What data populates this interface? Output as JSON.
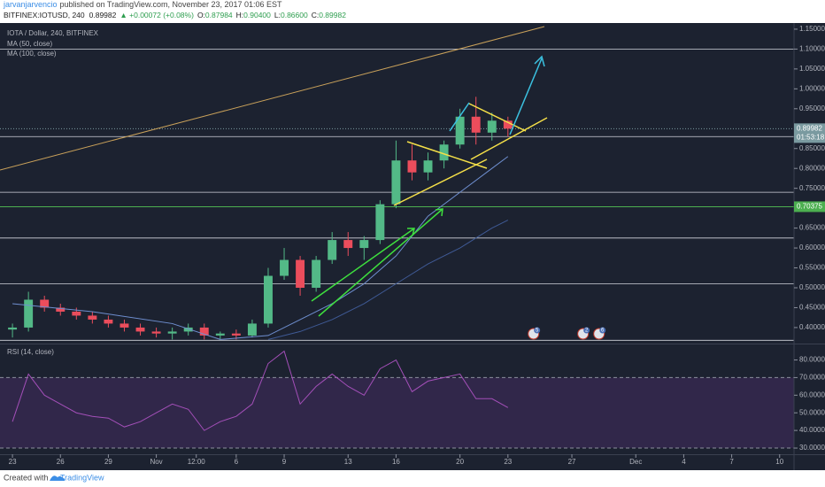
{
  "header": {
    "author": "jarvanjarvencio",
    "published": "published on TradingView.com, November 23, 2017 01:06 EST",
    "symbol": "BITFINEX:IOTUSD, 240",
    "price": "0.89982",
    "change": "▲ +0.00072 (+0.08%)",
    "ohlc": [
      {
        "key": "O:",
        "value": "0.87984"
      },
      {
        "key": "H:",
        "value": "0.90400"
      },
      {
        "key": "L:",
        "value": "0.86600"
      },
      {
        "key": "C:",
        "value": "0.89982"
      }
    ]
  },
  "footer": {
    "created": "Created with",
    "brand": "TradingView"
  },
  "chart_data": {
    "type": "candlestick",
    "title": "IOTA / Dollar, 240, BITFINEX",
    "up_color": "#53b987",
    "down_color": "#eb4d5c",
    "x": [
      0,
      1,
      2,
      3,
      4,
      5,
      6,
      7,
      8,
      9,
      10,
      11,
      12,
      13,
      14,
      15,
      16,
      17,
      18,
      19,
      20,
      21,
      22,
      23,
      24,
      25,
      26,
      27,
      28,
      29,
      30,
      31
    ],
    "open": [
      0.395,
      0.4,
      0.47,
      0.45,
      0.44,
      0.43,
      0.42,
      0.41,
      0.4,
      0.39,
      0.385,
      0.39,
      0.4,
      0.38,
      0.385,
      0.38,
      0.41,
      0.53,
      0.57,
      0.5,
      0.57,
      0.62,
      0.6,
      0.62,
      0.71,
      0.82,
      0.79,
      0.82,
      0.86,
      0.93,
      0.89,
      0.92
    ],
    "high": [
      0.41,
      0.49,
      0.48,
      0.46,
      0.45,
      0.44,
      0.43,
      0.42,
      0.41,
      0.4,
      0.4,
      0.41,
      0.41,
      0.39,
      0.395,
      0.42,
      0.55,
      0.6,
      0.58,
      0.58,
      0.64,
      0.64,
      0.63,
      0.72,
      0.87,
      0.86,
      0.84,
      0.87,
      0.95,
      0.98,
      0.94,
      0.93
    ],
    "low": [
      0.375,
      0.39,
      0.44,
      0.43,
      0.42,
      0.41,
      0.4,
      0.39,
      0.38,
      0.375,
      0.37,
      0.38,
      0.37,
      0.37,
      0.37,
      0.375,
      0.4,
      0.52,
      0.48,
      0.49,
      0.56,
      0.58,
      0.57,
      0.61,
      0.7,
      0.77,
      0.77,
      0.8,
      0.85,
      0.86,
      0.87,
      0.88
    ],
    "close": [
      0.4,
      0.47,
      0.45,
      0.44,
      0.43,
      0.42,
      0.41,
      0.4,
      0.39,
      0.385,
      0.39,
      0.4,
      0.38,
      0.385,
      0.38,
      0.41,
      0.53,
      0.57,
      0.5,
      0.57,
      0.62,
      0.6,
      0.62,
      0.71,
      0.82,
      0.79,
      0.82,
      0.86,
      0.93,
      0.89,
      0.92,
      0.9
    ],
    "ma": [
      {
        "name": "MA (50, close)",
        "color": "#6f8fd0",
        "x": [
          0,
          5,
          10,
          13,
          16,
          18,
          20,
          22,
          24,
          26,
          28,
          30,
          31
        ],
        "values": [
          0.46,
          0.44,
          0.41,
          0.37,
          0.38,
          0.42,
          0.46,
          0.51,
          0.58,
          0.68,
          0.74,
          0.8,
          0.83
        ]
      },
      {
        "name": "MA (100, close)",
        "color": "#3f5a95",
        "x": [
          16,
          18,
          20,
          22,
          24,
          26,
          28,
          30,
          31
        ],
        "values": [
          0.37,
          0.39,
          0.42,
          0.46,
          0.51,
          0.56,
          0.6,
          0.65,
          0.67
        ]
      }
    ],
    "xlim": [
      -0.78,
      48.9
    ],
    "xticks": [
      {
        "value": 0,
        "label": "23"
      },
      {
        "value": 3,
        "label": "26"
      },
      {
        "value": 6,
        "label": "29"
      },
      {
        "value": 9,
        "label": "Nov"
      },
      {
        "value": 11.5,
        "label": "12:00"
      },
      {
        "value": 14,
        "label": "6"
      },
      {
        "value": 17,
        "label": "9"
      },
      {
        "value": 21,
        "label": "13"
      },
      {
        "value": 24,
        "label": "16"
      },
      {
        "value": 28,
        "label": "20"
      },
      {
        "value": 31,
        "label": "23"
      },
      {
        "value": 35,
        "label": "27"
      },
      {
        "value": 39,
        "label": "Dec"
      },
      {
        "value": 42,
        "label": "4"
      },
      {
        "value": 45,
        "label": "7"
      },
      {
        "value": 48,
        "label": "10"
      }
    ],
    "ylim": [
      0.362,
      1.161
    ],
    "yticks": [
      {
        "value": 1.15,
        "label": "1.15000"
      },
      {
        "value": 1.1,
        "label": "1.10000"
      },
      {
        "value": 1.05,
        "label": "1.05000"
      },
      {
        "value": 1.0,
        "label": "1.00000"
      },
      {
        "value": 0.95,
        "label": "0.95000"
      },
      {
        "value": 0.85,
        "label": "0.85000"
      },
      {
        "value": 0.8,
        "label": "0.80000"
      },
      {
        "value": 0.75,
        "label": "0.75000"
      },
      {
        "value": 0.65,
        "label": "0.65000"
      },
      {
        "value": 0.6,
        "label": "0.60000"
      },
      {
        "value": 0.55,
        "label": "0.55000"
      },
      {
        "value": 0.5,
        "label": "0.50000"
      },
      {
        "value": 0.45,
        "label": "0.45000"
      },
      {
        "value": 0.4,
        "label": "0.40000"
      }
    ],
    "levels": [
      1.1,
      0.88,
      0.74,
      0.625,
      0.51,
      0.368
    ],
    "level_color": "#d1d4dc",
    "alert_level": {
      "value": 0.70375,
      "color": "#4caf50"
    },
    "last_price": {
      "value": 0.89982,
      "countdown": "01:53:18",
      "color": "#7a9aa0"
    },
    "events": [
      {
        "x": 32.6,
        "label": "5"
      },
      {
        "x": 35.7,
        "label": "2"
      },
      {
        "x": 36.7,
        "label": "6"
      }
    ],
    "rsi": {
      "name": "RSI (14, close)",
      "color": "#a34fb8",
      "values": [
        45,
        72,
        60,
        55,
        50,
        48,
        47,
        42,
        45,
        50,
        55,
        52,
        40,
        45,
        48,
        55,
        78,
        85,
        55,
        65,
        72,
        65,
        60,
        75,
        80,
        62,
        68,
        70,
        72,
        58,
        58,
        53
      ],
      "ylim": [
        27,
        88.3
      ],
      "band": [
        30,
        70
      ],
      "yticks": [
        {
          "value": 80,
          "label": "80.0000"
        },
        {
          "value": 70,
          "label": "70.0000"
        },
        {
          "value": 60,
          "label": "60.0000"
        },
        {
          "value": 50,
          "label": "50.0000"
        },
        {
          "value": 40,
          "label": "40.0000"
        },
        {
          "value": 30,
          "label": "30.0000"
        }
      ]
    }
  }
}
